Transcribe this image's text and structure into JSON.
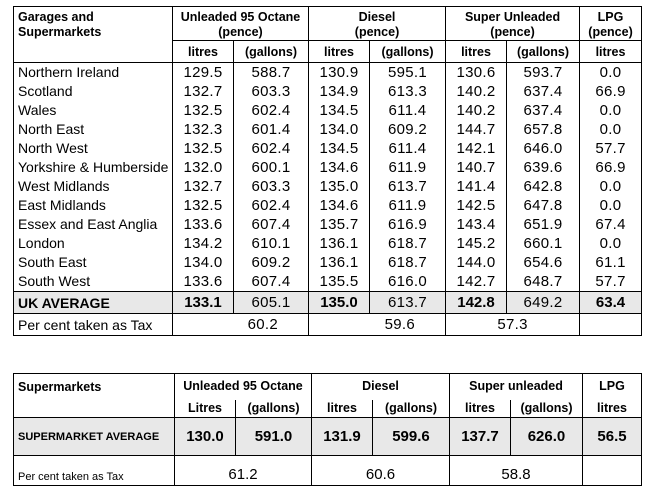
{
  "table1": {
    "corner": "Garages and Supermarkets",
    "groups": [
      {
        "name": "Unleaded 95 Octane",
        "unit": "(pence)"
      },
      {
        "name": "Diesel",
        "unit": "(pence)"
      },
      {
        "name": "Super Unleaded",
        "unit": "(pence)"
      },
      {
        "name": "LPG",
        "unit": "(pence)"
      }
    ],
    "sub_litres": "litres",
    "sub_gallons": "(gallons)",
    "rows": [
      {
        "region": "Northern Ireland",
        "v": [
          "129.5",
          "588.7",
          "130.9",
          "595.1",
          "130.6",
          "593.7",
          "0.0"
        ]
      },
      {
        "region": "Scotland",
        "v": [
          "132.7",
          "603.3",
          "134.9",
          "613.3",
          "140.2",
          "637.4",
          "66.9"
        ]
      },
      {
        "region": "Wales",
        "v": [
          "132.5",
          "602.4",
          "134.5",
          "611.4",
          "140.2",
          "637.4",
          "0.0"
        ]
      },
      {
        "region": "North East",
        "v": [
          "132.3",
          "601.4",
          "134.0",
          "609.2",
          "144.7",
          "657.8",
          "0.0"
        ]
      },
      {
        "region": "North West",
        "v": [
          "132.5",
          "602.4",
          "134.5",
          "611.4",
          "142.1",
          "646.0",
          "57.7"
        ]
      },
      {
        "region": "Yorkshire & Humberside",
        "v": [
          "132.0",
          "600.1",
          "134.6",
          "611.9",
          "140.7",
          "639.6",
          "66.9"
        ]
      },
      {
        "region": "West Midlands",
        "v": [
          "132.7",
          "603.3",
          "135.0",
          "613.7",
          "141.4",
          "642.8",
          "0.0"
        ]
      },
      {
        "region": "East Midlands",
        "v": [
          "132.5",
          "602.4",
          "134.6",
          "611.9",
          "142.5",
          "647.8",
          "0.0"
        ]
      },
      {
        "region": "Essex and East Anglia",
        "v": [
          "133.6",
          "607.4",
          "135.7",
          "616.9",
          "143.4",
          "651.9",
          "67.4"
        ]
      },
      {
        "region": "London",
        "v": [
          "134.2",
          "610.1",
          "136.1",
          "618.7",
          "145.2",
          "660.1",
          "0.0"
        ]
      },
      {
        "region": "South East",
        "v": [
          "134.0",
          "609.2",
          "136.1",
          "618.7",
          "144.0",
          "654.6",
          "61.1"
        ]
      },
      {
        "region": "South West",
        "v": [
          "133.6",
          "607.4",
          "135.5",
          "616.0",
          "142.7",
          "648.7",
          "57.7"
        ]
      }
    ],
    "average": {
      "label": "UK AVERAGE",
      "v": [
        "133.1",
        "605.1",
        "135.0",
        "613.7",
        "142.8",
        "649.2",
        "63.4"
      ]
    },
    "tax": {
      "label": "Per cent taken as Tax",
      "v": [
        "60.2",
        "59.6",
        "57.3"
      ]
    }
  },
  "table2": {
    "corner": "Supermarkets",
    "groups": [
      "Unleaded 95 Octane",
      "Diesel",
      "Super unleaded",
      "LPG"
    ],
    "subs": [
      "Litres",
      "(gallons)",
      "litres",
      "(gallons)",
      "litres",
      "(gallons)",
      "litres"
    ],
    "average": {
      "label": "SUPERMARKET AVERAGE",
      "v": [
        "130.0",
        "591.0",
        "131.9",
        "599.6",
        "137.7",
        "626.0",
        "56.5"
      ]
    },
    "tax": {
      "label": "Per cent taken as Tax",
      "v": [
        "61.2",
        "60.6",
        "58.8"
      ]
    }
  }
}
